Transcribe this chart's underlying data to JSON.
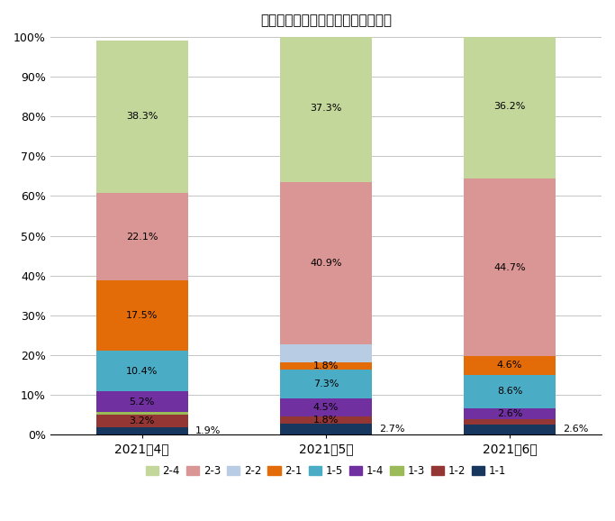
{
  "title": "問題行動の内容別内訳（月次推移）",
  "categories": [
    "2021年4月",
    "2021年5月",
    "2021年6月"
  ],
  "series_order": [
    "1-1",
    "1-2",
    "1-3",
    "1-4",
    "1-5",
    "2-1",
    "2-2",
    "2-3",
    "2-4"
  ],
  "series": {
    "1-1": [
      1.9,
      2.7,
      2.6
    ],
    "1-2": [
      3.2,
      1.8,
      1.3
    ],
    "1-3": [
      0.5,
      0.0,
      0.0
    ],
    "1-4": [
      5.2,
      4.5,
      2.6
    ],
    "1-5": [
      10.4,
      7.3,
      8.6
    ],
    "2-1": [
      17.5,
      1.8,
      4.6
    ],
    "2-2": [
      0.0,
      4.5,
      0.0
    ],
    "2-3": [
      22.1,
      40.9,
      44.7
    ],
    "2-4": [
      38.3,
      37.3,
      36.2
    ]
  },
  "bar_colors": {
    "2-4": "#c4d79b",
    "2-3": "#da9694",
    "2-2": "#b8cce4",
    "2-1": "#e36c09",
    "1-5": "#4bacc6",
    "1-4": "#7030a0",
    "1-3": "#9bbb59",
    "1-2": "#943634",
    "1-1": "#17375e"
  },
  "legend_colors": {
    "2-4": "#c4d79b",
    "2-3": "#da9694",
    "2-2": "#b8cce4",
    "2-1": "#e36c09",
    "1-5": "#4bacc6",
    "1-4": "#7030a0",
    "1-3": "#9bbb59",
    "1-2": "#943634",
    "1-1": "#17375e"
  },
  "labels_to_show": {
    "1-1": [
      false,
      false,
      false
    ],
    "1-2": [
      true,
      true,
      false
    ],
    "1-3": [
      false,
      false,
      false
    ],
    "1-4": [
      true,
      true,
      true
    ],
    "1-5": [
      true,
      true,
      true
    ],
    "2-1": [
      true,
      true,
      true
    ],
    "2-2": [
      false,
      false,
      false
    ],
    "2-3": [
      true,
      true,
      true
    ],
    "2-4": [
      true,
      true,
      true
    ]
  },
  "outside_labels": {
    "1-1": [
      true,
      true,
      true
    ]
  },
  "ylim": [
    0,
    100
  ],
  "yticks": [
    0,
    10,
    20,
    30,
    40,
    50,
    60,
    70,
    80,
    90,
    100
  ],
  "ytick_labels": [
    "0%",
    "10%",
    "20%",
    "30%",
    "40%",
    "50%",
    "60%",
    "70%",
    "80%",
    "90%",
    "100%"
  ],
  "bar_width": 0.5,
  "figsize": [
    6.83,
    5.78
  ],
  "dpi": 100,
  "legend_order": [
    "2-4",
    "2-3",
    "2-2",
    "2-1",
    "1-5",
    "1-4",
    "1-3",
    "1-2",
    "1-1"
  ]
}
